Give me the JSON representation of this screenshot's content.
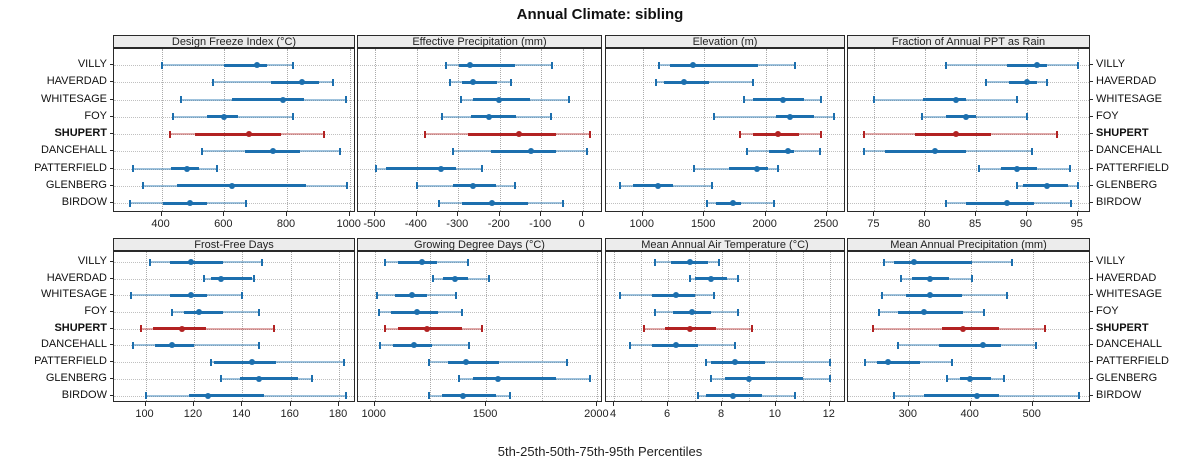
{
  "title": "Annual Climate: sibling",
  "footer": "5th-25th-50th-75th-95th Percentiles",
  "sites": [
    "VILLY",
    "HAVERDAD",
    "WHITESAGE",
    "FOY",
    "SHUPERT",
    "DANCEHALL",
    "PATTERFIELD",
    "GLENBERG",
    "BIRDOW"
  ],
  "highlight_site": "SHUPERT",
  "colors": {
    "series": "#1c6fae",
    "series_band": "rgba(28,111,174,0.42)",
    "highlight": "#b22222",
    "highlight_band": "rgba(178,34,34,0.38)",
    "grid": "#ababab",
    "strip_bg": "#ececec",
    "border": "#2a2a2a"
  },
  "chart_data": [
    {
      "type": "interval-dotplot",
      "title": "Design Freeze Index (°C)",
      "row": 0,
      "col": 0,
      "axis": {
        "min": 248,
        "max": 1020,
        "ticks": [
          400,
          600,
          800,
          1000
        ],
        "tick_labels": [
          "400",
          "600",
          "800",
          "1000"
        ],
        "grid": [
          400,
          600,
          800,
          1000
        ]
      },
      "series": [
        {
          "site": "VILLY",
          "p5": 400,
          "p25": 598,
          "p50": 703,
          "p75": 737,
          "p95": 820
        },
        {
          "site": "HAVERDAD",
          "p5": 565,
          "p25": 748,
          "p50": 848,
          "p75": 903,
          "p95": 948
        },
        {
          "site": "WHITESAGE",
          "p5": 460,
          "p25": 625,
          "p50": 788,
          "p75": 855,
          "p95": 988
        },
        {
          "site": "FOY",
          "p5": 435,
          "p25": 545,
          "p50": 600,
          "p75": 645,
          "p95": 820
        },
        {
          "site": "SHUPERT",
          "p5": 426,
          "p25": 505,
          "p50": 677,
          "p75": 780,
          "p95": 918
        },
        {
          "site": "DANCEHALL",
          "p5": 530,
          "p25": 665,
          "p50": 755,
          "p75": 840,
          "p95": 968
        },
        {
          "site": "PATTERFIELD",
          "p5": 310,
          "p25": 430,
          "p50": 480,
          "p75": 520,
          "p95": 575
        },
        {
          "site": "GLENBERG",
          "p5": 340,
          "p25": 450,
          "p50": 625,
          "p75": 860,
          "p95": 990
        },
        {
          "site": "BIRDOW",
          "p5": 300,
          "p25": 405,
          "p50": 490,
          "p75": 545,
          "p95": 670
        }
      ]
    },
    {
      "type": "interval-dotplot",
      "title": "Effective Precipitation (mm)",
      "row": 0,
      "col": 1,
      "axis": {
        "min": -542,
        "max": 49,
        "ticks": [
          -500,
          -400,
          -300,
          -200,
          -100,
          0
        ],
        "tick_labels": [
          "-500",
          "-400",
          "-300",
          "-200",
          "-100",
          "0"
        ],
        "grid": [
          -500,
          -400,
          -300,
          -200,
          -100,
          0
        ]
      },
      "series": [
        {
          "site": "VILLY",
          "p5": -330,
          "p25": -299,
          "p50": -272,
          "p75": -163,
          "p95": -74
        },
        {
          "site": "HAVERDAD",
          "p5": -320,
          "p25": -291,
          "p50": -264,
          "p75": -206,
          "p95": -172
        },
        {
          "site": "WHITESAGE",
          "p5": -294,
          "p25": -265,
          "p50": -202,
          "p75": -128,
          "p95": -33
        },
        {
          "site": "FOY",
          "p5": -339,
          "p25": -269,
          "p50": -227,
          "p75": -161,
          "p95": -77
        },
        {
          "site": "SHUPERT",
          "p5": -380,
          "p25": -277,
          "p50": -153,
          "p75": -65,
          "p95": 18
        },
        {
          "site": "DANCEHALL",
          "p5": -314,
          "p25": -221,
          "p50": -125,
          "p75": -65,
          "p95": 10
        },
        {
          "site": "PATTERFIELD",
          "p5": -498,
          "p25": -475,
          "p50": -342,
          "p75": -306,
          "p95": -242
        },
        {
          "site": "GLENBERG",
          "p5": -400,
          "p25": -314,
          "p50": -265,
          "p75": -210,
          "p95": -163
        },
        {
          "site": "BIRDOW",
          "p5": -346,
          "p25": -291,
          "p50": -219,
          "p75": -131,
          "p95": -48
        }
      ]
    },
    {
      "type": "interval-dotplot",
      "title": "Elevation (m)",
      "row": 0,
      "col": 2,
      "axis": {
        "min": 700,
        "max": 2655,
        "ticks": [
          1000,
          1500,
          2000,
          2500
        ],
        "tick_labels": [
          "1000",
          "1500",
          "2000",
          "2500"
        ],
        "grid": [
          1000,
          1500,
          2000,
          2500
        ]
      },
      "series": [
        {
          "site": "VILLY",
          "p5": 1130,
          "p25": 1220,
          "p50": 1407,
          "p75": 1935,
          "p95": 2240
        },
        {
          "site": "HAVERDAD",
          "p5": 1108,
          "p25": 1176,
          "p50": 1338,
          "p75": 1541,
          "p95": 1900
        },
        {
          "site": "WHITESAGE",
          "p5": 1826,
          "p25": 1894,
          "p50": 2138,
          "p75": 2314,
          "p95": 2455
        },
        {
          "site": "FOY",
          "p5": 1577,
          "p25": 2084,
          "p50": 2200,
          "p75": 2395,
          "p95": 2558
        },
        {
          "site": "SHUPERT",
          "p5": 1794,
          "p25": 1894,
          "p50": 2103,
          "p75": 2273,
          "p95": 2450
        },
        {
          "site": "DANCEHALL",
          "p5": 1848,
          "p25": 2029,
          "p50": 2179,
          "p75": 2233,
          "p95": 2444
        },
        {
          "site": "PATTERFIELD",
          "p5": 1415,
          "p25": 1704,
          "p50": 1929,
          "p75": 2016,
          "p95": 2098
        },
        {
          "site": "GLENBERG",
          "p5": 810,
          "p25": 920,
          "p50": 1127,
          "p75": 1244,
          "p95": 1560
        },
        {
          "site": "BIRDOW",
          "p5": 1523,
          "p25": 1596,
          "p50": 1732,
          "p75": 1799,
          "p95": 2065
        }
      ]
    },
    {
      "type": "interval-dotplot",
      "title": "Fraction of Annual PPT as Rain",
      "row": 0,
      "col": 3,
      "axis": {
        "min": 72.4,
        "max": 96.3,
        "ticks": [
          75,
          80,
          85,
          90,
          95
        ],
        "tick_labels": [
          "75",
          "80",
          "85",
          "90",
          "95"
        ],
        "grid": [
          75,
          80,
          85,
          90,
          95
        ]
      },
      "series": [
        {
          "site": "VILLY",
          "p5": 82,
          "p25": 88,
          "p50": 91,
          "p75": 92,
          "p95": 95
        },
        {
          "site": "HAVERDAD",
          "p5": 86,
          "p25": 88.2,
          "p50": 90,
          "p75": 91,
          "p95": 92
        },
        {
          "site": "WHITESAGE",
          "p5": 75,
          "p25": 79.8,
          "p50": 83,
          "p75": 84,
          "p95": 89
        },
        {
          "site": "FOY",
          "p5": 79.7,
          "p25": 82,
          "p50": 84,
          "p75": 85,
          "p95": 90
        },
        {
          "site": "SHUPERT",
          "p5": 74,
          "p25": 79,
          "p50": 83,
          "p75": 86.5,
          "p95": 93
        },
        {
          "site": "DANCEHALL",
          "p5": 74,
          "p25": 76,
          "p50": 81,
          "p75": 84,
          "p95": 90.5
        },
        {
          "site": "PATTERFIELD",
          "p5": 85.3,
          "p25": 87.4,
          "p50": 89,
          "p75": 91,
          "p95": 94.2
        },
        {
          "site": "GLENBERG",
          "p5": 89,
          "p25": 89.6,
          "p50": 92,
          "p75": 94,
          "p95": 95
        },
        {
          "site": "BIRDOW",
          "p5": 82,
          "p25": 84,
          "p50": 88,
          "p75": 90.7,
          "p95": 94.3
        }
      ]
    },
    {
      "type": "interval-dotplot",
      "title": "Frost-Free Days",
      "row": 1,
      "col": 0,
      "axis": {
        "min": 87,
        "max": 187,
        "ticks": [
          100,
          120,
          140,
          160,
          180
        ],
        "tick_labels": [
          "100",
          "120",
          "140",
          "160",
          "180"
        ],
        "grid": [
          100,
          120,
          140,
          160,
          180
        ]
      },
      "series": [
        {
          "site": "VILLY",
          "p5": 102,
          "p25": 110,
          "p50": 119,
          "p75": 132,
          "p95": 148
        },
        {
          "site": "HAVERDAD",
          "p5": 124,
          "p25": 127,
          "p50": 131,
          "p75": 144,
          "p95": 145
        },
        {
          "site": "WHITESAGE",
          "p5": 94,
          "p25": 110,
          "p50": 119,
          "p75": 125.5,
          "p95": 140
        },
        {
          "site": "FOY",
          "p5": 111,
          "p25": 116,
          "p50": 122,
          "p75": 132,
          "p95": 147
        },
        {
          "site": "SHUPERT",
          "p5": 98,
          "p25": 103,
          "p50": 115,
          "p75": 125,
          "p95": 153
        },
        {
          "site": "DANCEHALL",
          "p5": 95,
          "p25": 104,
          "p50": 111,
          "p75": 120,
          "p95": 147
        },
        {
          "site": "PATTERFIELD",
          "p5": 127,
          "p25": 128.5,
          "p50": 144,
          "p75": 154,
          "p95": 182
        },
        {
          "site": "GLENBERG",
          "p5": 131,
          "p25": 139,
          "p50": 147,
          "p75": 163,
          "p95": 169
        },
        {
          "site": "BIRDOW",
          "p5": 100,
          "p25": 118,
          "p50": 126,
          "p75": 149,
          "p95": 183
        }
      ]
    },
    {
      "type": "interval-dotplot",
      "title": "Growing Degree Days (°C)",
      "row": 1,
      "col": 1,
      "axis": {
        "min": 925,
        "max": 2025,
        "ticks": [
          1000,
          1500,
          2000
        ],
        "tick_labels": [
          "1000",
          "1500",
          "2000"
        ],
        "grid": [
          1000,
          1250,
          1500,
          1750,
          2000
        ]
      },
      "series": [
        {
          "site": "VILLY",
          "p5": 1045,
          "p25": 1105,
          "p50": 1210,
          "p75": 1280,
          "p95": 1420
        },
        {
          "site": "HAVERDAD",
          "p5": 1260,
          "p25": 1305,
          "p50": 1360,
          "p75": 1420,
          "p95": 1515
        },
        {
          "site": "WHITESAGE",
          "p5": 1010,
          "p25": 1090,
          "p50": 1165,
          "p75": 1235,
          "p95": 1365
        },
        {
          "site": "FOY",
          "p5": 1020,
          "p25": 1075,
          "p50": 1190,
          "p75": 1285,
          "p95": 1390
        },
        {
          "site": "SHUPERT",
          "p5": 1045,
          "p25": 1105,
          "p50": 1235,
          "p75": 1390,
          "p95": 1480
        },
        {
          "site": "DANCEHALL",
          "p5": 1025,
          "p25": 1080,
          "p50": 1175,
          "p75": 1255,
          "p95": 1425
        },
        {
          "site": "PATTERFIELD",
          "p5": 1245,
          "p25": 1330,
          "p50": 1410,
          "p75": 1560,
          "p95": 1865
        },
        {
          "site": "GLENBERG",
          "p5": 1380,
          "p25": 1440,
          "p50": 1555,
          "p75": 1815,
          "p95": 1965
        },
        {
          "site": "BIRDOW",
          "p5": 1245,
          "p25": 1300,
          "p50": 1395,
          "p75": 1545,
          "p95": 1605
        }
      ]
    },
    {
      "type": "interval-dotplot",
      "title": "Mean Annual Air Temperature (°C)",
      "row": 1,
      "col": 2,
      "axis": {
        "min": 3.7,
        "max": 12.6,
        "ticks": [
          4,
          6,
          8,
          10,
          12
        ],
        "tick_labels": [
          "4",
          "6",
          "8",
          "10",
          "12"
        ],
        "grid": [
          4,
          5,
          6,
          7,
          8,
          9,
          10,
          11,
          12
        ]
      },
      "series": [
        {
          "site": "VILLY",
          "p5": 5.5,
          "p25": 6.1,
          "p50": 6.8,
          "p75": 7.5,
          "p95": 7.9
        },
        {
          "site": "HAVERDAD",
          "p5": 6.8,
          "p25": 7.0,
          "p50": 7.6,
          "p75": 8.2,
          "p95": 8.6
        },
        {
          "site": "WHITESAGE",
          "p5": 4.2,
          "p25": 5.4,
          "p50": 6.3,
          "p75": 7.0,
          "p95": 7.7
        },
        {
          "site": "FOY",
          "p5": 5.5,
          "p25": 6.2,
          "p50": 6.9,
          "p75": 7.6,
          "p95": 8.6
        },
        {
          "site": "SHUPERT",
          "p5": 5.1,
          "p25": 5.9,
          "p50": 6.8,
          "p75": 7.8,
          "p95": 9.1
        },
        {
          "site": "DANCEHALL",
          "p5": 4.6,
          "p25": 5.4,
          "p50": 6.3,
          "p75": 7.1,
          "p95": 8.5
        },
        {
          "site": "PATTERFIELD",
          "p5": 7.4,
          "p25": 7.6,
          "p50": 8.5,
          "p75": 9.6,
          "p95": 12.0
        },
        {
          "site": "GLENBERG",
          "p5": 7.6,
          "p25": 8.1,
          "p50": 9.0,
          "p75": 11.0,
          "p95": 12.0
        },
        {
          "site": "BIRDOW",
          "p5": 7.1,
          "p25": 7.4,
          "p50": 8.4,
          "p75": 9.5,
          "p95": 10.7
        }
      ]
    },
    {
      "type": "interval-dotplot",
      "title": "Mean Annual Precipitation (mm)",
      "row": 1,
      "col": 3,
      "axis": {
        "min": 202,
        "max": 594,
        "ticks": [
          300,
          400,
          500
        ],
        "tick_labels": [
          "300",
          "400",
          "500"
        ],
        "grid": [
          300,
          400,
          500
        ]
      },
      "series": [
        {
          "site": "VILLY",
          "p5": 260,
          "p25": 276,
          "p50": 308,
          "p75": 402,
          "p95": 466
        },
        {
          "site": "HAVERDAD",
          "p5": 288,
          "p25": 305,
          "p50": 334,
          "p75": 365,
          "p95": 402
        },
        {
          "site": "WHITESAGE",
          "p5": 256,
          "p25": 295,
          "p50": 335,
          "p75": 386,
          "p95": 458
        },
        {
          "site": "FOY",
          "p5": 252,
          "p25": 283,
          "p50": 324,
          "p75": 388,
          "p95": 421
        },
        {
          "site": "SHUPERT",
          "p5": 242,
          "p25": 354,
          "p50": 388,
          "p75": 445,
          "p95": 519
        },
        {
          "site": "DANCEHALL",
          "p5": 283,
          "p25": 348,
          "p50": 420,
          "p75": 448,
          "p95": 506
        },
        {
          "site": "PATTERFIELD",
          "p5": 230,
          "p25": 249,
          "p50": 267,
          "p75": 318,
          "p95": 370
        },
        {
          "site": "GLENBERG",
          "p5": 361,
          "p25": 383,
          "p50": 398,
          "p75": 433,
          "p95": 453
        },
        {
          "site": "BIRDOW",
          "p5": 276,
          "p25": 324,
          "p50": 410,
          "p75": 445,
          "p95": 574
        }
      ]
    }
  ]
}
